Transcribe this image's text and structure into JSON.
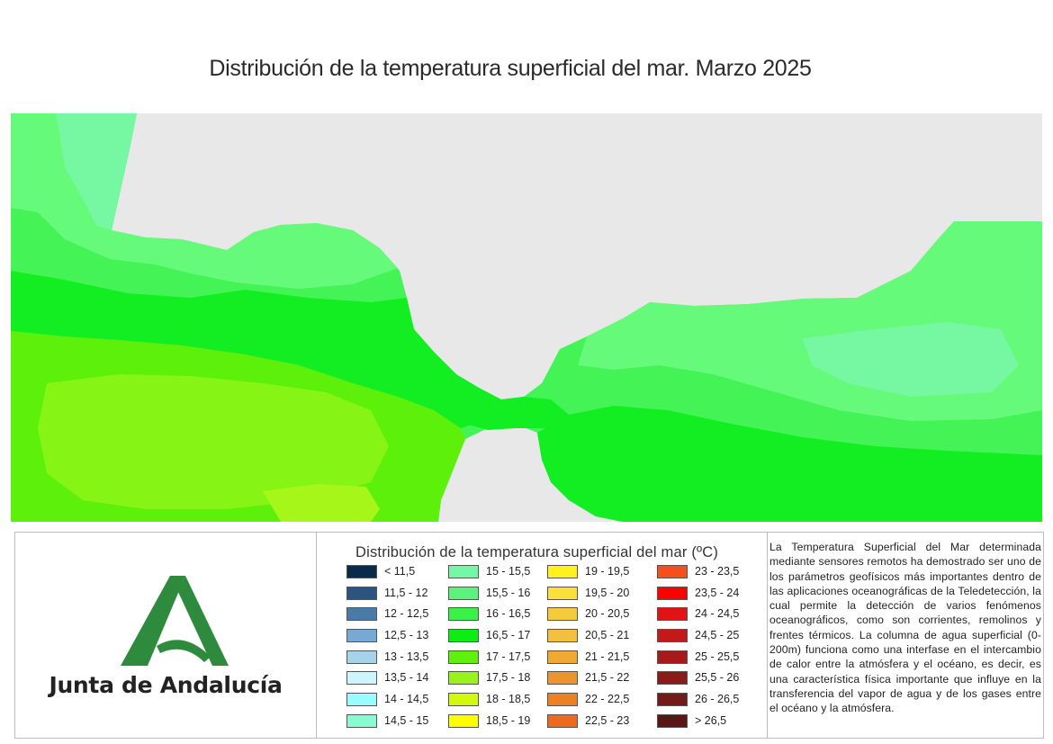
{
  "title": "Distribución de la temperatura superficial del mar. Marzo 2025",
  "map": {
    "land_color": "#e8e8e8",
    "sea_colors": {
      "15.5-16": "#66ff7a",
      "16-16.5": "#3dfa4e",
      "16.5-17": "#10f020",
      "17-17.5": "#5cf00a",
      "17.5-18": "#8af51c",
      "15-15.5": "#74f79a"
    }
  },
  "logo": {
    "text": "Junta de Andalucía",
    "color": "#2e8b3e"
  },
  "legend": {
    "title": "Distribución de la temperatura superficial del mar (ºC)",
    "columns": [
      [
        {
          "label": "< 11,5",
          "color": "#0a2a4a"
        },
        {
          "label": "11,5 - 12",
          "color": "#2b5580"
        },
        {
          "label": "12 - 12,5",
          "color": "#4a7aa8"
        },
        {
          "label": "12,5 - 13",
          "color": "#78a8d4"
        },
        {
          "label": "13 - 13,5",
          "color": "#a6d2ec"
        },
        {
          "label": "13,5 - 14",
          "color": "#ccf6fc"
        },
        {
          "label": "14 - 14,5",
          "color": "#99fcff"
        },
        {
          "label": "14,5 - 15",
          "color": "#88fcd0"
        }
      ],
      [
        {
          "label": "15 - 15,5",
          "color": "#74f7a6"
        },
        {
          "label": "15,5 - 16",
          "color": "#5cf37c"
        },
        {
          "label": "16 - 16,5",
          "color": "#38f24a"
        },
        {
          "label": "16,5 - 17",
          "color": "#0ced14"
        },
        {
          "label": "17 - 17,5",
          "color": "#60f00c"
        },
        {
          "label": "17,5 - 18",
          "color": "#98f31a"
        },
        {
          "label": "18 - 18,5",
          "color": "#d2f80e"
        },
        {
          "label": "18,5 - 19",
          "color": "#fdfe00"
        }
      ],
      [
        {
          "label": "19 - 19,5",
          "color": "#fef21e"
        },
        {
          "label": "19,5 - 20",
          "color": "#fae038"
        },
        {
          "label": "20 - 20,5",
          "color": "#f4cc3a"
        },
        {
          "label": "20,5 - 21",
          "color": "#f2c03e"
        },
        {
          "label": "21 - 21,5",
          "color": "#f0aa34"
        },
        {
          "label": "21,5 - 22",
          "color": "#ee942e"
        },
        {
          "label": "22 - 22,5",
          "color": "#ec8024"
        },
        {
          "label": "22,5 - 23",
          "color": "#ee6a1c"
        }
      ],
      [
        {
          "label": "23 - 23,5",
          "color": "#f4501c"
        },
        {
          "label": "23,5 - 24",
          "color": "#fe0000"
        },
        {
          "label": "24 - 24,5",
          "color": "#e01414"
        },
        {
          "label": "24,5 - 25",
          "color": "#c21a1a"
        },
        {
          "label": "25 - 25,5",
          "color": "#a81a1a"
        },
        {
          "label": "25,5 - 26",
          "color": "#8c1a1a"
        },
        {
          "label": "26 - 26,5",
          "color": "#741a1a"
        },
        {
          "label": "> 26,5",
          "color": "#5a1616"
        }
      ]
    ]
  },
  "info_text": "La Temperatura Superficial del Mar determinada mediante sensores remotos ha demostrado ser uno de los parámetros geofísicos más importantes dentro de las aplicaciones oceanográficas de la Teledetección, la cual permite la detección de varios fenómenos oceanográficos, como son corrientes, remolinos y frentes térmicos. La columna de agua superficial (0-200m) funciona como una interfase en el intercambio de calor entre la atmósfera y el océano, es decir, es una característica física importante que influye en la transferencia del vapor de agua y de los gases entre el océano y la atmósfera."
}
